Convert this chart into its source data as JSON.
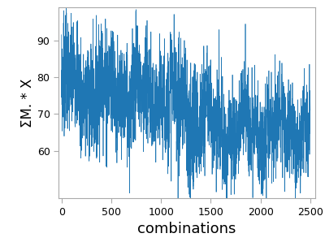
{
  "n_points": 2500,
  "x_label": "combinations",
  "y_label": "ΣM. * X",
  "x_ticks": [
    0,
    500,
    1000,
    1500,
    2000,
    2500
  ],
  "y_ticks": [
    60,
    70,
    80,
    90
  ],
  "y_lim": [
    47,
    99
  ],
  "x_lim": [
    -30,
    2550
  ],
  "line_color": "#1f77b4",
  "line_width": 0.5,
  "background_color": "#ffffff",
  "seed": 7,
  "xlabel_fontsize": 13,
  "ylabel_fontsize": 12
}
